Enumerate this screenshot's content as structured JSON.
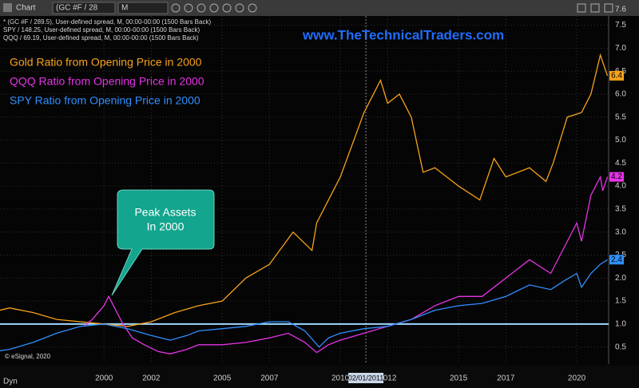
{
  "chart_data": {
    "type": "line",
    "toolbar": {
      "title": "Chart",
      "symbol": "(GC #F / 28",
      "interval": "M"
    },
    "study_lines": [
      "* (GC #F / 289.5), User-defined spread, M, 00:00-00:00 (1500 Bars Back)",
      "SPY / 148.25, User-defined spread, M, 00:00-00:00 (1500 Bars Back)",
      "QQQ / 69.19, User-defined spread, M, 00:00-00:00 (1500 Bars Back)"
    ],
    "watermark": "www.TheTechnicalTraders.com",
    "annotation": [
      "Peak Assets",
      "In 2000"
    ],
    "footer_left": "Dyn",
    "copyright": "© eSignal, 2020",
    "cursor": {
      "x": 2011.08,
      "label": "02/01/2011"
    },
    "reference_line": 1,
    "reference_color": "#9fd8ff",
    "grid": true,
    "xlim": [
      1995.6,
      2021.35
    ],
    "xticks": [
      2000,
      2002,
      2005,
      2007,
      2010,
      2012,
      2015,
      2017,
      2020
    ],
    "ylim": [
      0.13,
      7.7
    ],
    "y_top_label": 7.6,
    "yticks": [
      0.5,
      {
        "value": 1,
        "label": "1.0"
      },
      1.5,
      {
        "value": 2,
        "label": "2.0"
      },
      2.5,
      {
        "value": 3,
        "label": "3.0"
      },
      3.5,
      {
        "value": 4,
        "label": "4.0"
      },
      4.5,
      {
        "value": 5,
        "label": "5.0"
      },
      5.5,
      {
        "value": 6,
        "label": "6.0"
      },
      6.5,
      {
        "value": 7,
        "label": "7.0"
      },
      7.5
    ],
    "series": [
      {
        "name": "Gold Ratio from Opening Price in 2000",
        "color": "#f7a21b",
        "x": [
          1995.6,
          1996,
          1997,
          1998,
          1999,
          2000,
          2001,
          2002,
          2003,
          2004,
          2005,
          2006,
          2007,
          2008,
          2008.8,
          2009,
          2010,
          2011,
          2011.7,
          2012,
          2012.5,
          2013,
          2013.5,
          2014,
          2015,
          2015.9,
          2016.5,
          2017,
          2018,
          2018.7,
          2019,
          2019.6,
          2020.2,
          2020.6,
          2021,
          2021.3
        ],
        "values": [
          1.3,
          1.35,
          1.25,
          1.1,
          1.05,
          1.0,
          0.95,
          1.05,
          1.25,
          1.4,
          1.5,
          2.0,
          2.3,
          3.0,
          2.6,
          3.2,
          4.2,
          5.6,
          6.3,
          5.8,
          6.0,
          5.5,
          4.3,
          4.4,
          4.0,
          3.7,
          4.6,
          4.2,
          4.4,
          4.1,
          4.5,
          5.5,
          5.6,
          6.0,
          6.85,
          6.4
        ]
      },
      {
        "name": "QQQ Ratio from Opening Price in 2000",
        "color": "#e633e6",
        "x": [
          1999.15,
          1999.5,
          2000,
          2000.2,
          2000.5,
          2000.8,
          2001.2,
          2001.7,
          2002.3,
          2002.8,
          2003.5,
          2004,
          2005,
          2006,
          2007,
          2007.8,
          2008.5,
          2009,
          2009.5,
          2010,
          2011,
          2012,
          2013,
          2014,
          2015,
          2016,
          2017,
          2018,
          2018.9,
          2019.5,
          2020,
          2020.2,
          2020.6,
          2021,
          2021.1,
          2021.3
        ],
        "values": [
          0.95,
          1.1,
          1.4,
          1.6,
          1.3,
          1.0,
          0.7,
          0.55,
          0.4,
          0.35,
          0.45,
          0.55,
          0.55,
          0.6,
          0.7,
          0.8,
          0.6,
          0.38,
          0.55,
          0.65,
          0.8,
          0.95,
          1.1,
          1.4,
          1.6,
          1.6,
          2.0,
          2.4,
          2.1,
          2.7,
          3.2,
          2.8,
          3.8,
          4.2,
          3.9,
          4.2
        ]
      },
      {
        "name": "SPY Ratio from Opening Price in 2000",
        "color": "#2f8fff",
        "x": [
          1995.6,
          1996,
          1997,
          1998,
          1999,
          2000,
          2001,
          2002,
          2002.8,
          2003.5,
          2004,
          2005,
          2006,
          2007,
          2007.8,
          2008.5,
          2009.1,
          2009.5,
          2010,
          2011,
          2012,
          2013,
          2014,
          2015,
          2016,
          2017,
          2018,
          2018.9,
          2019.5,
          2020,
          2020.2,
          2020.6,
          2021,
          2021.3
        ],
        "values": [
          0.42,
          0.45,
          0.6,
          0.8,
          0.95,
          1.0,
          0.9,
          0.75,
          0.65,
          0.75,
          0.85,
          0.9,
          0.95,
          1.05,
          1.05,
          0.85,
          0.5,
          0.7,
          0.8,
          0.9,
          0.95,
          1.1,
          1.3,
          1.4,
          1.45,
          1.6,
          1.85,
          1.75,
          1.95,
          2.1,
          1.8,
          2.1,
          2.3,
          2.4
        ]
      }
    ]
  }
}
